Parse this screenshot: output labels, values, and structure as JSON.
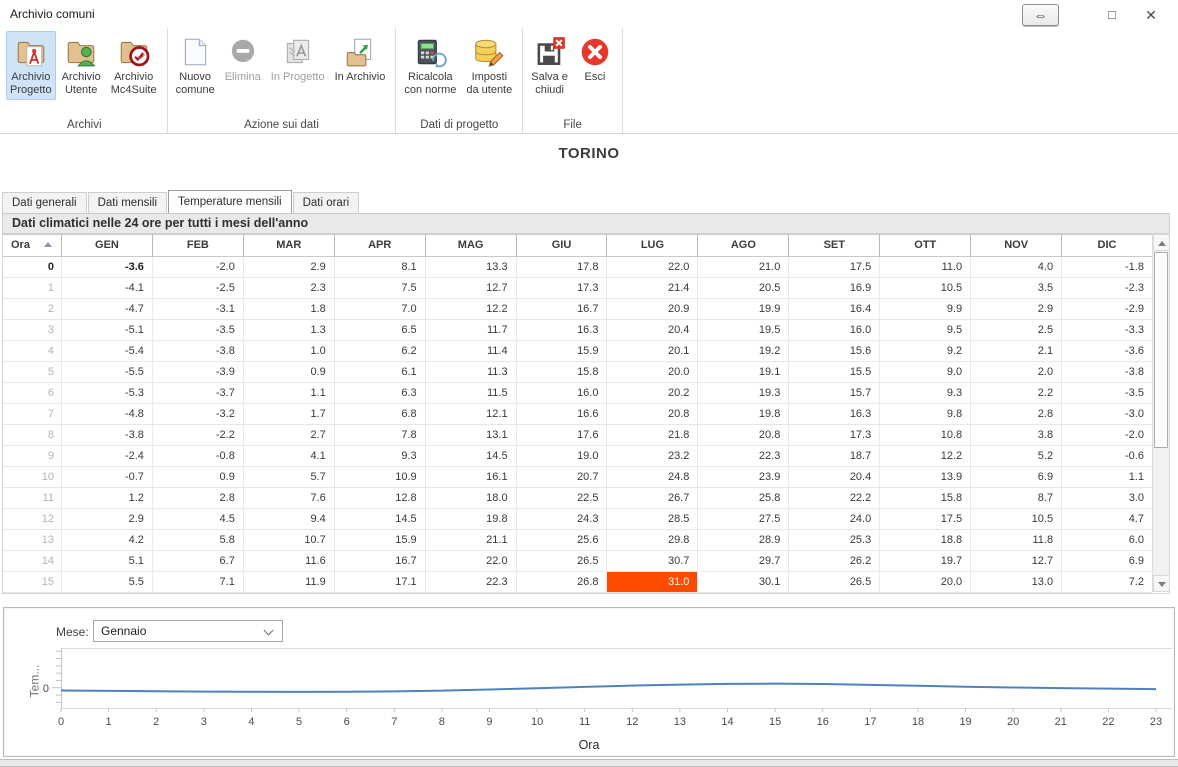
{
  "window": {
    "title": "Archivio comuni",
    "controls": {
      "resize": "⇔",
      "maximize": "□",
      "close": "✕"
    }
  },
  "ribbon": {
    "groups": [
      {
        "label": "Archivi",
        "items": [
          {
            "label": "Archivio\nProgetto",
            "icon": "folder-project-icon",
            "selected": true
          },
          {
            "label": "Archivio\nUtente",
            "icon": "folder-user-icon"
          },
          {
            "label": "Archivio\nMc4Suite",
            "icon": "folder-check-icon"
          }
        ]
      },
      {
        "label": "Azione sui dati",
        "items": [
          {
            "label": "Nuovo\ncomune",
            "icon": "new-document-icon"
          },
          {
            "label": "Elimina",
            "icon": "remove-icon",
            "disabled": true
          },
          {
            "label": "In Progetto",
            "icon": "copy-to-project-icon",
            "disabled": true
          },
          {
            "label": "In Archivio",
            "icon": "copy-to-archive-icon"
          }
        ]
      },
      {
        "label": "Dati di progetto",
        "items": [
          {
            "label": "Ricalcola\ncon norme",
            "icon": "recalculate-icon"
          },
          {
            "label": "Imposti\nda utente",
            "icon": "user-settings-icon"
          }
        ]
      },
      {
        "label": "File",
        "items": [
          {
            "label": "Salva e\nchiudi",
            "icon": "save-close-icon"
          },
          {
            "label": "Esci",
            "icon": "exit-icon"
          }
        ]
      }
    ]
  },
  "heading": "TORINO",
  "tabs": [
    {
      "label": "Dati generali"
    },
    {
      "label": "Dati mensili"
    },
    {
      "label": "Temperature mensili",
      "active": true
    },
    {
      "label": "Dati orari"
    }
  ],
  "section_header": "Dati climatici nelle 24 ore per tutti i mesi dell'anno",
  "table": {
    "columns": [
      "Ora",
      "GEN",
      "FEB",
      "MAR",
      "APR",
      "MAG",
      "GIU",
      "LUG",
      "AGO",
      "SET",
      "OTT",
      "NOV",
      "DIC"
    ],
    "rows": [
      [
        "0",
        "-3.6",
        "-2.0",
        "2.9",
        "8.1",
        "13.3",
        "17.8",
        "22.0",
        "21.0",
        "17.5",
        "11.0",
        "4.0",
        "-1.8"
      ],
      [
        "1",
        "-4.1",
        "-2.5",
        "2.3",
        "7.5",
        "12.7",
        "17.3",
        "21.4",
        "20.5",
        "16.9",
        "10.5",
        "3.5",
        "-2.3"
      ],
      [
        "2",
        "-4.7",
        "-3.1",
        "1.8",
        "7.0",
        "12.2",
        "16.7",
        "20.9",
        "19.9",
        "16.4",
        "9.9",
        "2.9",
        "-2.9"
      ],
      [
        "3",
        "-5.1",
        "-3.5",
        "1.3",
        "6.5",
        "11.7",
        "16.3",
        "20.4",
        "19.5",
        "16.0",
        "9.5",
        "2.5",
        "-3.3"
      ],
      [
        "4",
        "-5.4",
        "-3.8",
        "1.0",
        "6.2",
        "11.4",
        "15.9",
        "20.1",
        "19.2",
        "15.6",
        "9.2",
        "2.1",
        "-3.6"
      ],
      [
        "5",
        "-5.5",
        "-3.9",
        "0.9",
        "6.1",
        "11.3",
        "15.8",
        "20.0",
        "19.1",
        "15.5",
        "9.0",
        "2.0",
        "-3.8"
      ],
      [
        "6",
        "-5.3",
        "-3.7",
        "1.1",
        "6.3",
        "11.5",
        "16.0",
        "20.2",
        "19.3",
        "15.7",
        "9.3",
        "2.2",
        "-3.5"
      ],
      [
        "7",
        "-4.8",
        "-3.2",
        "1.7",
        "6.8",
        "12.1",
        "16.6",
        "20.8",
        "19.8",
        "16.3",
        "9.8",
        "2.8",
        "-3.0"
      ],
      [
        "8",
        "-3.8",
        "-2.2",
        "2.7",
        "7.8",
        "13.1",
        "17.6",
        "21.8",
        "20.8",
        "17.3",
        "10.8",
        "3.8",
        "-2.0"
      ],
      [
        "9",
        "-2.4",
        "-0.8",
        "4.1",
        "9.3",
        "14.5",
        "19.0",
        "23.2",
        "22.3",
        "18.7",
        "12.2",
        "5.2",
        "-0.6"
      ],
      [
        "10",
        "-0.7",
        "0.9",
        "5.7",
        "10.9",
        "16.1",
        "20.7",
        "24.8",
        "23.9",
        "20.4",
        "13.9",
        "6.9",
        "1.1"
      ],
      [
        "11",
        "1.2",
        "2.8",
        "7.6",
        "12.8",
        "18.0",
        "22.5",
        "26.7",
        "25.8",
        "22.2",
        "15.8",
        "8.7",
        "3.0"
      ],
      [
        "12",
        "2.9",
        "4.5",
        "9.4",
        "14.5",
        "19.8",
        "24.3",
        "28.5",
        "27.5",
        "24.0",
        "17.5",
        "10.5",
        "4.7"
      ],
      [
        "13",
        "4.2",
        "5.8",
        "10.7",
        "15.9",
        "21.1",
        "25.6",
        "29.8",
        "28.9",
        "25.3",
        "18.8",
        "11.8",
        "6.0"
      ],
      [
        "14",
        "5.1",
        "6.7",
        "11.6",
        "16.7",
        "22.0",
        "26.5",
        "30.7",
        "29.7",
        "26.2",
        "19.7",
        "12.7",
        "6.9"
      ],
      [
        "15",
        "5.5",
        "7.1",
        "11.9",
        "17.1",
        "22.3",
        "26.8",
        "31.0",
        "30.1",
        "26.5",
        "20.0",
        "13.0",
        "7.2"
      ]
    ],
    "current_row": 0,
    "bold_cell": {
      "row": 0,
      "col": 0
    },
    "selected_cell": {
      "row": 15,
      "col": 6
    },
    "selected_cell_color": "#fd4c00"
  },
  "chart": {
    "mese_label": "Mese:",
    "selected_month": "Gennaio",
    "ylabel_truncated": "Tem...",
    "xlabel": "Ora"
  },
  "chart_data": {
    "type": "line",
    "x": [
      0,
      1,
      2,
      3,
      4,
      5,
      6,
      7,
      8,
      9,
      10,
      11,
      12,
      13,
      14,
      15,
      16,
      17,
      18,
      19,
      20,
      21,
      22,
      23
    ],
    "series": [
      {
        "name": "Gennaio",
        "values": [
          -3.6,
          -4.1,
          -4.7,
          -5.1,
          -5.4,
          -5.5,
          -5.3,
          -4.8,
          -3.8,
          -2.4,
          -0.7,
          1.2,
          2.9,
          4.2,
          5.1,
          5.5,
          5.0,
          3.9,
          2.6,
          1.4,
          0.4,
          -0.5,
          -1.2,
          -1.8
        ]
      }
    ],
    "title": "",
    "xlabel": "Ora",
    "ylabel": "Tem...",
    "ytick_labels": [
      "0"
    ],
    "ylim": [
      -27,
      53
    ],
    "grid": false,
    "legend_position": "none",
    "line_color": "#4f81bd"
  },
  "colors": {
    "ribbon_selected_bg": "#cfe4f7",
    "selected_cell": "#fd4c00",
    "chart_line": "#4f81bd"
  }
}
